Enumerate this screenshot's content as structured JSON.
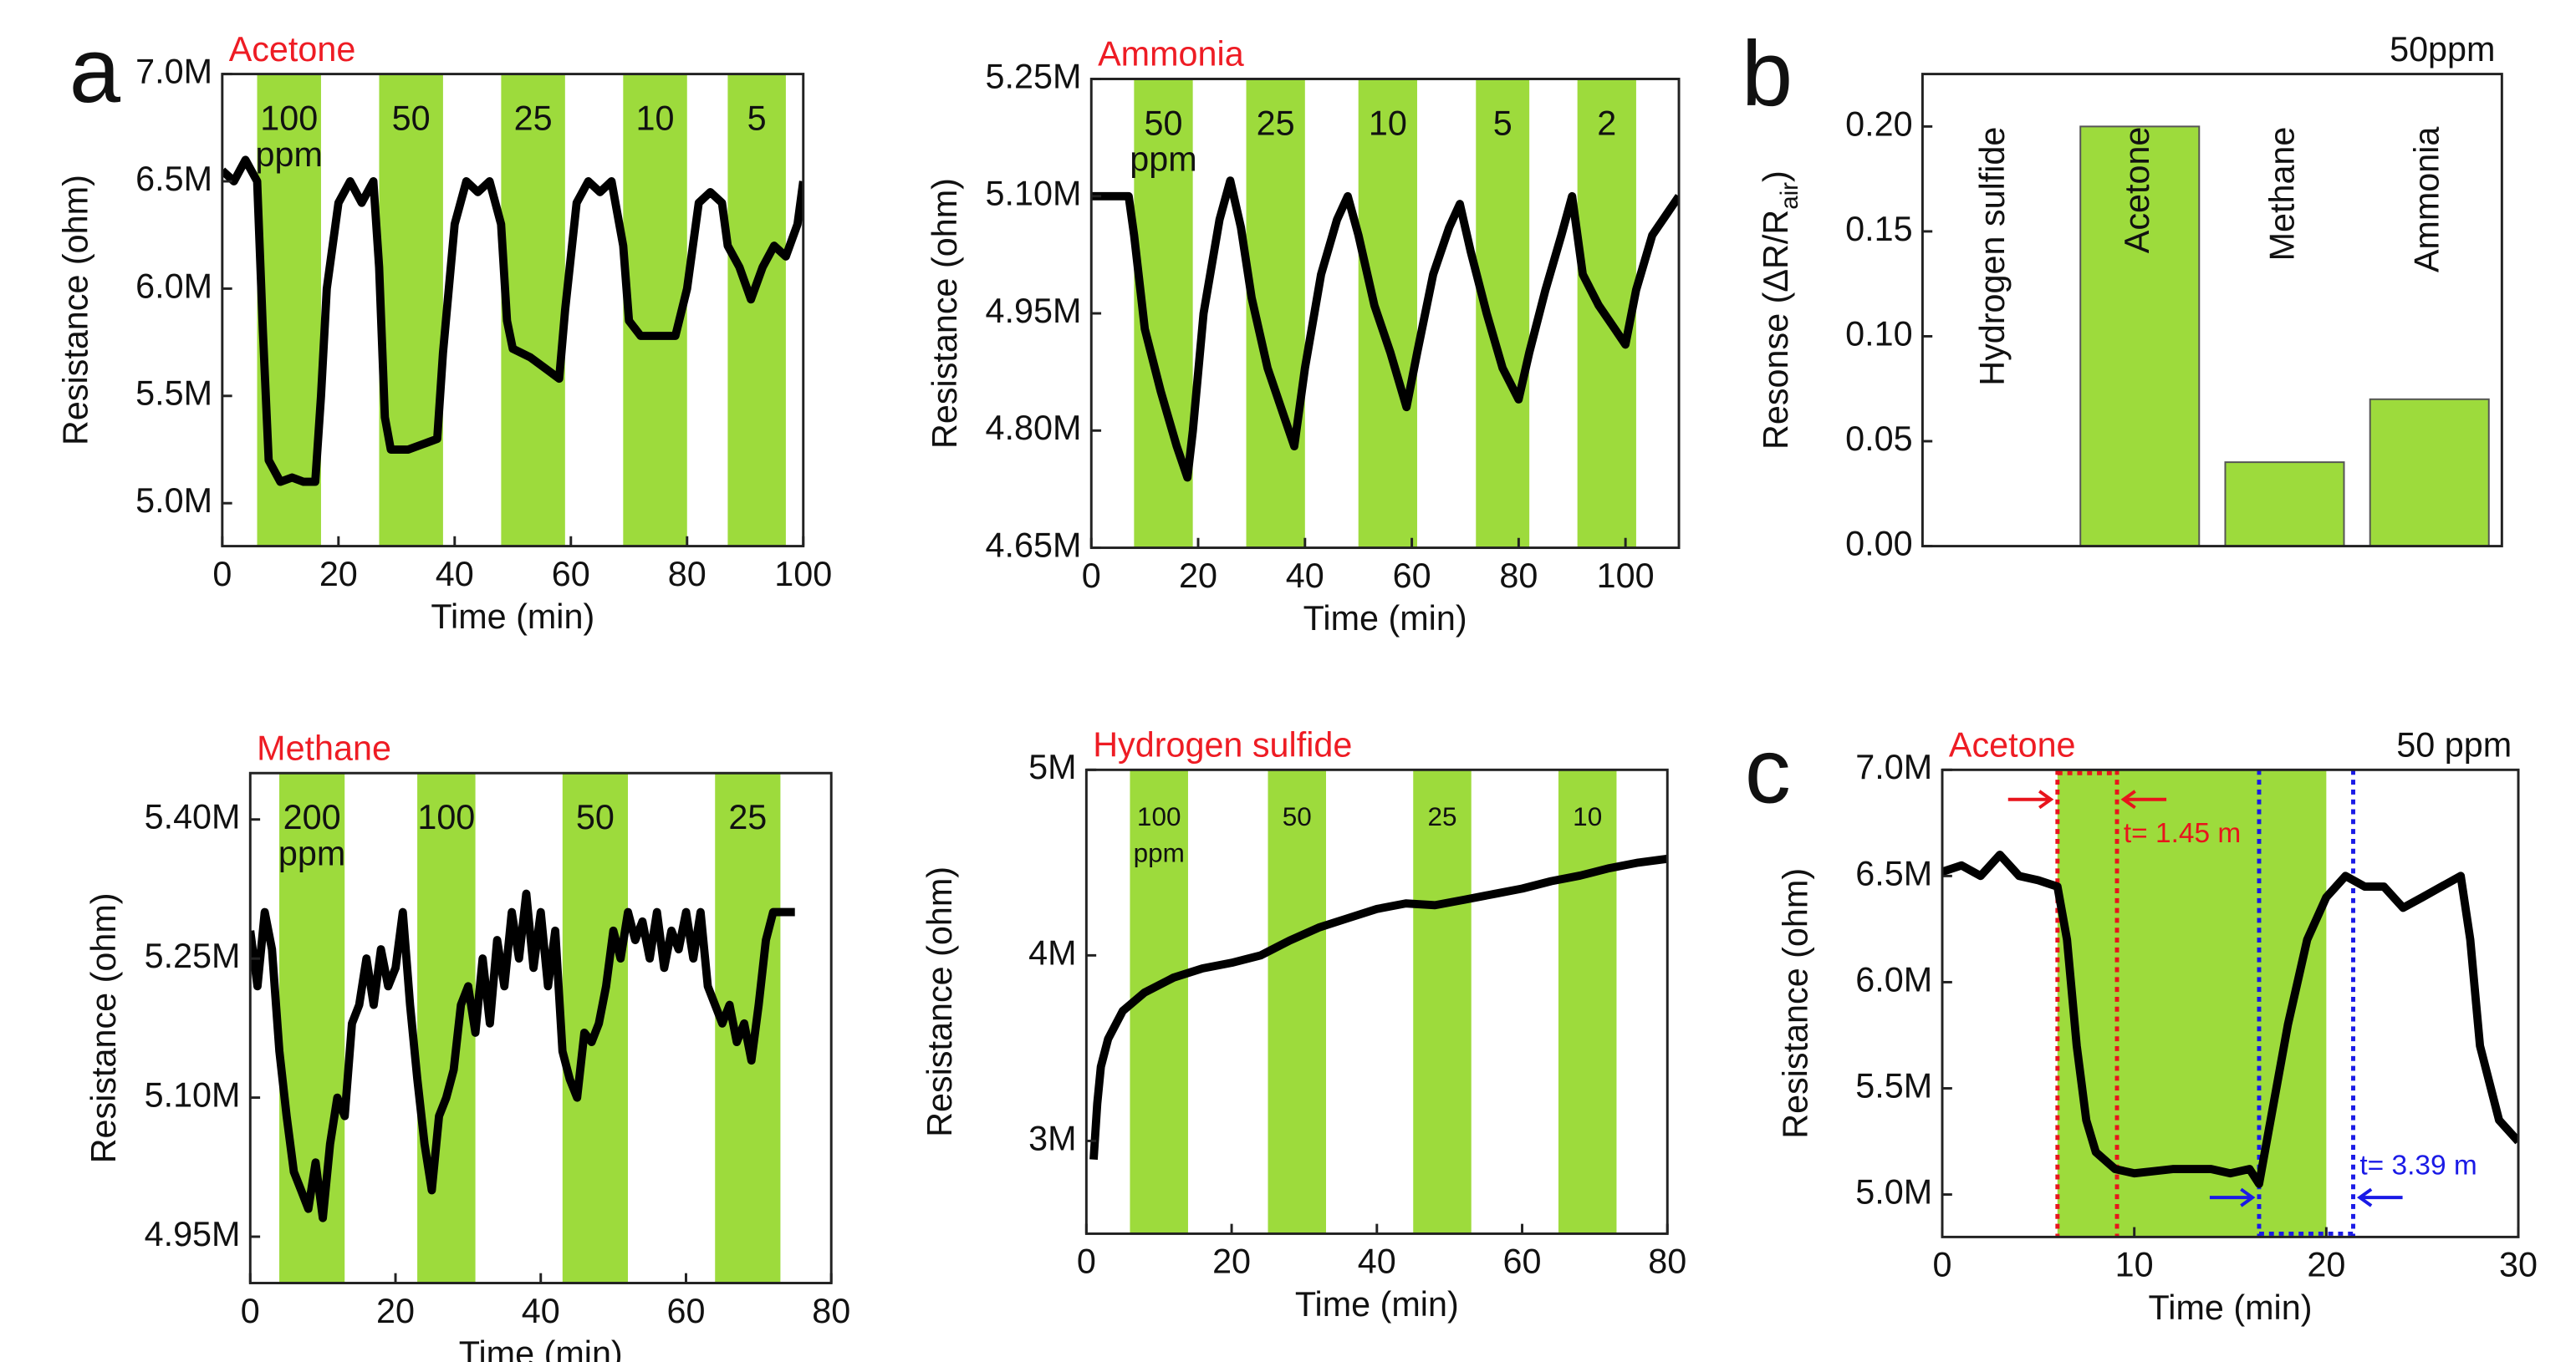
{
  "chart_data": [
    {
      "type": "line",
      "panel": "a",
      "title": "Acetone",
      "xlabel": "Time (min)",
      "ylabel": "Resistance (ohm)",
      "color": "#000000",
      "band_color": "#9ddb3c",
      "xlim": [
        0,
        100
      ],
      "xticks": [
        0,
        20,
        40,
        60,
        80,
        100
      ],
      "ylim": [
        4800000,
        7000000
      ],
      "yticks": [
        {
          "value": 5000000,
          "label": "5.0M"
        },
        {
          "value": 5500000,
          "label": "5.5M"
        },
        {
          "value": 6000000,
          "label": "6.0M"
        },
        {
          "value": 6500000,
          "label": "6.5M"
        },
        {
          "value": 7000000,
          "label": "7.0M"
        }
      ],
      "bands": [
        {
          "x": [
            6,
            17
          ],
          "label": "100",
          "unit": "ppm"
        },
        {
          "x": [
            27,
            38
          ],
          "label": "50"
        },
        {
          "x": [
            48,
            59
          ],
          "label": "25"
        },
        {
          "x": [
            69,
            80
          ],
          "label": "10"
        },
        {
          "x": [
            87,
            97
          ],
          "label": "5"
        }
      ],
      "x": [
        0,
        2,
        4,
        6,
        7,
        8,
        10,
        12,
        14,
        16,
        17,
        18,
        20,
        22,
        24,
        26,
        27,
        28,
        29,
        32,
        35,
        37,
        38,
        40,
        42,
        44,
        46,
        48,
        49,
        50,
        53,
        56,
        58,
        59,
        61,
        63,
        65,
        67,
        69,
        70,
        72,
        75,
        78,
        80,
        82,
        84,
        86,
        87,
        89,
        91,
        93,
        95,
        97,
        99,
        100
      ],
      "values": [
        6550000,
        6500000,
        6600000,
        6500000,
        5800000,
        5200000,
        5100000,
        5120000,
        5100000,
        5100000,
        5500000,
        6000000,
        6400000,
        6500000,
        6400000,
        6500000,
        6100000,
        5400000,
        5250000,
        5250000,
        5280000,
        5300000,
        5700000,
        6300000,
        6500000,
        6450000,
        6500000,
        6300000,
        5850000,
        5720000,
        5680000,
        5620000,
        5580000,
        5900000,
        6400000,
        6500000,
        6450000,
        6500000,
        6200000,
        5850000,
        5780000,
        5780000,
        5780000,
        6000000,
        6400000,
        6450000,
        6400000,
        6200000,
        6100000,
        5950000,
        6100000,
        6200000,
        6150000,
        6300000,
        6500000
      ]
    },
    {
      "type": "line",
      "title": "Ammonia",
      "xlabel": "Time (min)",
      "ylabel": "Resistance (ohm)",
      "color": "#000000",
      "band_color": "#9ddb3c",
      "xlim": [
        0,
        110
      ],
      "xticks": [
        0,
        20,
        40,
        60,
        80,
        100
      ],
      "ylim": [
        4650000,
        5250000
      ],
      "yticks": [
        {
          "value": 4650000,
          "label": "4.65M"
        },
        {
          "value": 4800000,
          "label": "4.80M"
        },
        {
          "value": 4950000,
          "label": "4.95M"
        },
        {
          "value": 5100000,
          "label": "5.10M"
        },
        {
          "value": 5250000,
          "label": "5.25M"
        }
      ],
      "bands": [
        {
          "x": [
            8,
            19
          ],
          "label": "50",
          "unit": "ppm"
        },
        {
          "x": [
            29,
            40
          ],
          "label": "25"
        },
        {
          "x": [
            50,
            61
          ],
          "label": "10"
        },
        {
          "x": [
            72,
            82
          ],
          "label": "5"
        },
        {
          "x": [
            91,
            102
          ],
          "label": "2"
        }
      ],
      "x": [
        0,
        7,
        8,
        10,
        13,
        16,
        18,
        19,
        21,
        24,
        26,
        28,
        30,
        33,
        36,
        38,
        40,
        43,
        46,
        48,
        50,
        53,
        56,
        59,
        61,
        64,
        67,
        69,
        71,
        74,
        77,
        80,
        82,
        85,
        88,
        90,
        92,
        95,
        98,
        100,
        102,
        105,
        108,
        110
      ],
      "values": [
        5100000,
        5100000,
        5050000,
        4930000,
        4850000,
        4780000,
        4740000,
        4800000,
        4950000,
        5070000,
        5120000,
        5060000,
        4970000,
        4880000,
        4820000,
        4780000,
        4880000,
        5000000,
        5070000,
        5100000,
        5050000,
        4960000,
        4900000,
        4830000,
        4900000,
        5000000,
        5060000,
        5090000,
        5030000,
        4950000,
        4880000,
        4840000,
        4900000,
        4980000,
        5050000,
        5100000,
        5000000,
        4960000,
        4930000,
        4910000,
        4980000,
        5050000,
        5080000,
        5100000
      ]
    },
    {
      "type": "bar",
      "panel": "b",
      "annotation": "50ppm",
      "ylabel": "Resonse (ΔR/R",
      "ylabel_sub": "air",
      "ylabel_end": ")",
      "color": "#9ddb3c",
      "categories": [
        "Hydrogen sulfide",
        "Acetone",
        "Methane",
        "Ammonia"
      ],
      "values": [
        0,
        0.2,
        0.04,
        0.07
      ],
      "ylim": [
        0,
        0.225
      ],
      "yticks": [
        {
          "value": 0,
          "label": "0.00"
        },
        {
          "value": 0.05,
          "label": "0.05"
        },
        {
          "value": 0.1,
          "label": "0.10"
        },
        {
          "value": 0.15,
          "label": "0.15"
        },
        {
          "value": 0.2,
          "label": "0.20"
        }
      ]
    },
    {
      "type": "line",
      "title": "Methane",
      "xlabel": "Time (min)",
      "ylabel": "Resistance (ohm)",
      "color": "#000000",
      "band_color": "#9ddb3c",
      "xlim": [
        0,
        80
      ],
      "xticks": [
        0,
        20,
        40,
        60,
        80
      ],
      "ylim": [
        4900000,
        5450000
      ],
      "yticks": [
        {
          "value": 4950000,
          "label": "4.95M"
        },
        {
          "value": 5100000,
          "label": "5.10M"
        },
        {
          "value": 5250000,
          "label": "5.25M"
        },
        {
          "value": 5400000,
          "label": "5.40M"
        }
      ],
      "bands": [
        {
          "x": [
            4,
            13
          ],
          "label": "200",
          "unit": "ppm"
        },
        {
          "x": [
            23,
            31
          ],
          "label": "100"
        },
        {
          "x": [
            43,
            52
          ],
          "label": "50"
        },
        {
          "x": [
            64,
            73
          ],
          "label": "25"
        }
      ],
      "x": [
        0,
        1,
        2,
        3,
        4,
        5,
        6,
        7,
        8,
        9,
        10,
        11,
        12,
        13,
        14,
        15,
        16,
        17,
        18,
        19,
        20,
        21,
        22,
        23,
        24,
        25,
        26,
        27,
        28,
        29,
        30,
        31,
        32,
        33,
        34,
        35,
        36,
        37,
        38,
        39,
        40,
        41,
        42,
        43,
        44,
        45,
        46,
        47,
        48,
        49,
        50,
        51,
        52,
        53,
        54,
        55,
        56,
        57,
        58,
        59,
        60,
        61,
        62,
        63,
        64,
        65,
        66,
        67,
        68,
        69,
        70,
        71,
        72,
        73,
        75
      ],
      "values": [
        5280000,
        5220000,
        5300000,
        5260000,
        5150000,
        5080000,
        5020000,
        5000000,
        4980000,
        5030000,
        4970000,
        5050000,
        5100000,
        5080000,
        5180000,
        5200000,
        5250000,
        5200000,
        5260000,
        5220000,
        5240000,
        5300000,
        5200000,
        5120000,
        5050000,
        5000000,
        5080000,
        5100000,
        5130000,
        5200000,
        5220000,
        5170000,
        5250000,
        5180000,
        5270000,
        5220000,
        5300000,
        5250000,
        5320000,
        5240000,
        5300000,
        5220000,
        5280000,
        5150000,
        5120000,
        5100000,
        5170000,
        5160000,
        5180000,
        5220000,
        5280000,
        5250000,
        5300000,
        5270000,
        5290000,
        5250000,
        5300000,
        5240000,
        5280000,
        5260000,
        5300000,
        5250000,
        5300000,
        5220000,
        5200000,
        5180000,
        5200000,
        5160000,
        5180000,
        5140000,
        5200000,
        5270000,
        5300000,
        5300000,
        5300000
      ]
    },
    {
      "type": "line",
      "title": "Hydrogen sulfide",
      "xlabel": "Time (min)",
      "ylabel": "Resistance (ohm)",
      "color": "#000000",
      "band_color": "#9ddb3c",
      "xlim": [
        0,
        80
      ],
      "xticks": [
        0,
        20,
        40,
        60,
        80
      ],
      "ylim": [
        2500000,
        5000000
      ],
      "yticks": [
        {
          "value": 3000000,
          "label": "3M"
        },
        {
          "value": 4000000,
          "label": "4M"
        },
        {
          "value": 5000000,
          "label": "5M"
        }
      ],
      "bands": [
        {
          "x": [
            6,
            14
          ],
          "label": "100",
          "unit": "ppm"
        },
        {
          "x": [
            25,
            33
          ],
          "label": "50"
        },
        {
          "x": [
            45,
            53
          ],
          "label": "25"
        },
        {
          "x": [
            65,
            73
          ],
          "label": "10"
        }
      ],
      "x": [
        1,
        1.5,
        2,
        3,
        5,
        8,
        12,
        16,
        20,
        24,
        28,
        32,
        36,
        40,
        44,
        48,
        52,
        56,
        60,
        64,
        68,
        72,
        76,
        80
      ],
      "values": [
        2900000,
        3200000,
        3400000,
        3550000,
        3700000,
        3800000,
        3880000,
        3930000,
        3960000,
        4000000,
        4080000,
        4150000,
        4200000,
        4250000,
        4280000,
        4270000,
        4300000,
        4330000,
        4360000,
        4400000,
        4430000,
        4470000,
        4500000,
        4520000
      ]
    },
    {
      "type": "line",
      "panel": "c",
      "title": "Acetone",
      "annotation": "50 ppm",
      "xlabel": "Time (min)",
      "ylabel": "Resistance (ohm)",
      "color": "#000000",
      "band_color": "#9ddb3c",
      "xlim": [
        0,
        30
      ],
      "xticks": [
        0,
        10,
        20,
        30
      ],
      "ylim": [
        4800000,
        7000000
      ],
      "yticks": [
        {
          "value": 5000000,
          "label": "5.0M"
        },
        {
          "value": 5500000,
          "label": "5.5M"
        },
        {
          "value": 6000000,
          "label": "6.0M"
        },
        {
          "value": 6500000,
          "label": "6.5M"
        },
        {
          "value": 7000000,
          "label": "7.0M"
        }
      ],
      "bands": [
        {
          "x": [
            6,
            20
          ]
        }
      ],
      "windows": [
        {
          "x": [
            6,
            9.1
          ],
          "color": "#e8141c",
          "label": "t= 1.45 m"
        },
        {
          "x": [
            16.5,
            21.4
          ],
          "color": "#1a1ae6",
          "label": "t= 3.39 m"
        }
      ],
      "x": [
        0,
        1,
        2,
        3,
        4,
        5,
        6,
        6.5,
        7,
        7.5,
        8,
        9,
        10,
        12,
        14,
        15,
        16,
        16.5,
        17,
        18,
        19,
        20,
        21,
        22,
        23,
        24,
        25,
        26,
        27,
        27.5,
        28,
        29,
        30
      ],
      "values": [
        6520000,
        6550000,
        6500000,
        6600000,
        6500000,
        6480000,
        6450000,
        6200000,
        5700000,
        5350000,
        5200000,
        5120000,
        5100000,
        5120000,
        5120000,
        5100000,
        5120000,
        5050000,
        5300000,
        5800000,
        6200000,
        6400000,
        6500000,
        6450000,
        6450000,
        6350000,
        6400000,
        6450000,
        6500000,
        6200000,
        5700000,
        5350000,
        5250000
      ]
    }
  ]
}
